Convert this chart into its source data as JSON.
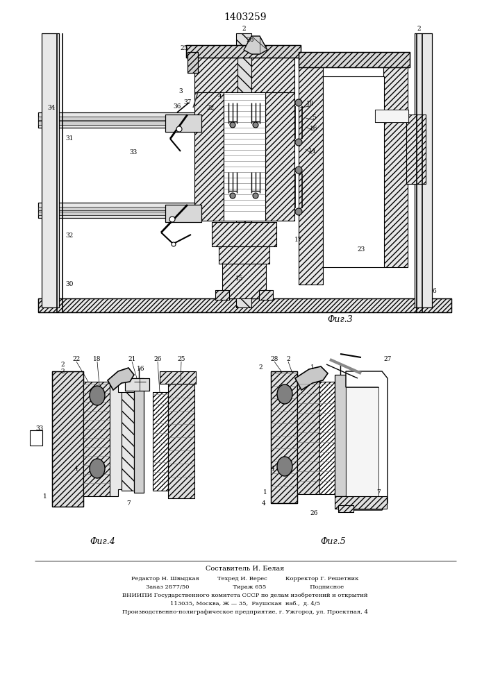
{
  "patent_number": "1403259",
  "background_color": "#ffffff",
  "line_color": "#000000",
  "fig_width": 7.07,
  "fig_height": 10.0,
  "footer_lines": [
    "Составитель И. Белая",
    "Редактор Н. Швыдкая          Техред И. Верес          Корректор Г. Решетник",
    "Заказ 2877/50                        Тираж 655                        Подписное",
    "ВНИИПИ Государственного комитета СССР по делам изобретений и открытий",
    "113035, Москва, Ж — 35,  Раушская  наб.,  д. 4/5",
    "Производственно-полиграфическое предприятие, г. Ужгород, ул. Проектная, 4"
  ],
  "fig3_label": "Фиг.3",
  "fig4_label": "Фиг.4",
  "fig5_label": "Фиг.5"
}
